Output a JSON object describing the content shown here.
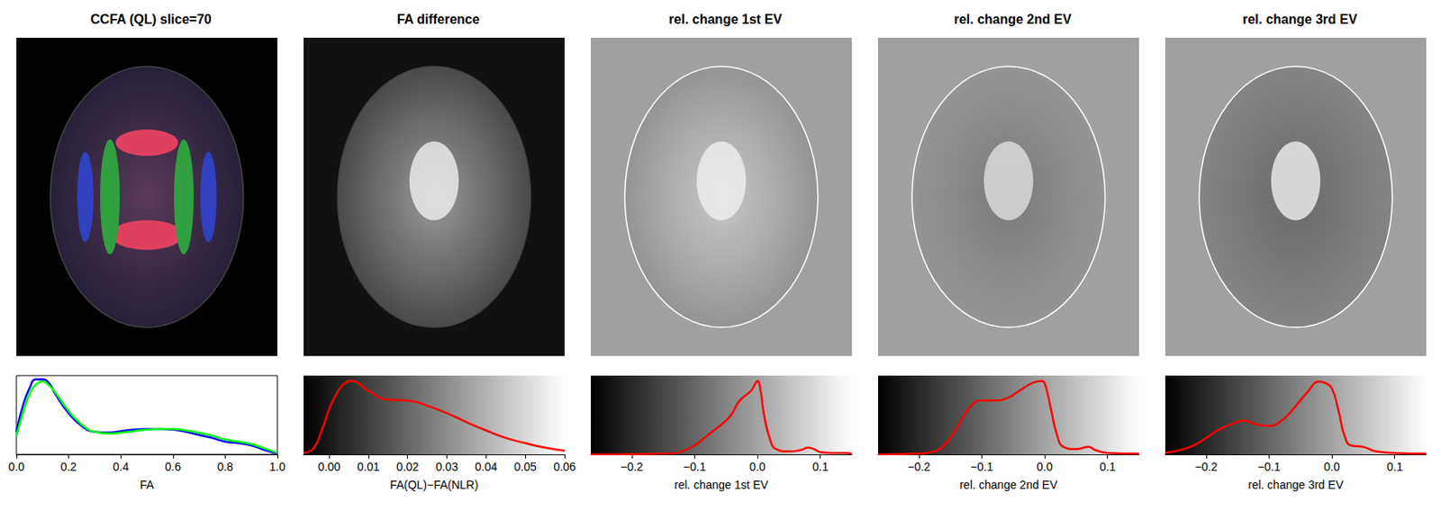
{
  "chart_data": [
    {
      "type": "line",
      "title": "CCFA (QL) slice=70",
      "x_label": "FA",
      "x": [
        0,
        0.025,
        0.05,
        0.075,
        0.1,
        0.125,
        0.15,
        0.2,
        0.25,
        0.3,
        0.35,
        0.4,
        0.45,
        0.5,
        0.55,
        0.6,
        0.65,
        0.7,
        0.75,
        0.8,
        0.85,
        0.9,
        0.95,
        1.0
      ],
      "series": [
        {
          "color": "#0000ff",
          "values": [
            0.3,
            0.65,
            0.88,
            1.0,
            1.0,
            0.95,
            0.8,
            0.55,
            0.38,
            0.3,
            0.29,
            0.31,
            0.33,
            0.34,
            0.34,
            0.33,
            0.3,
            0.26,
            0.22,
            0.17,
            0.15,
            0.12,
            0.06,
            0.01
          ]
        },
        {
          "color": "#00ff00",
          "values": [
            0.25,
            0.55,
            0.8,
            0.93,
            0.97,
            0.92,
            0.82,
            0.58,
            0.4,
            0.3,
            0.28,
            0.29,
            0.31,
            0.33,
            0.34,
            0.34,
            0.32,
            0.29,
            0.25,
            0.2,
            0.17,
            0.14,
            0.08,
            0.02
          ]
        }
      ],
      "xlim": [
        0,
        1.0
      ],
      "ylim": [
        0,
        1.05
      ],
      "xticks": [
        {
          "value": 0,
          "label": "0.0"
        },
        0.2,
        0.4,
        0.6,
        0.8,
        {
          "value": 1.0,
          "label": "1.0"
        }
      ],
      "tick_labels": "x"
    },
    {
      "type": "line",
      "title": "FA difference",
      "x_label": "FA(QL)−FA(NLR)",
      "x": [
        -0.0065,
        -0.004,
        -0.002,
        0,
        0.002,
        0.004,
        0.006,
        0.008,
        0.01,
        0.015,
        0.02,
        0.025,
        0.03,
        0.035,
        0.04,
        0.045,
        0.05,
        0.055,
        0.06
      ],
      "series": [
        {
          "color": "#ff0000",
          "values": [
            0.02,
            0.08,
            0.3,
            0.6,
            0.82,
            0.95,
            0.98,
            0.93,
            0.85,
            0.73,
            0.72,
            0.65,
            0.55,
            0.43,
            0.32,
            0.22,
            0.15,
            0.09,
            0.05
          ]
        }
      ],
      "xlim": [
        -0.0065,
        0.06
      ],
      "ylim": [
        0,
        1.05
      ],
      "xticks": [
        {
          "value": 0,
          "label": "0.00"
        },
        0.01,
        0.02,
        0.03,
        0.04,
        0.05,
        0.06
      ],
      "tick_labels": "x"
    },
    {
      "type": "line",
      "title": "rel. change 1st EV",
      "x_label": "rel. change 1st EV",
      "x": [
        -0.265,
        -0.14,
        -0.12,
        -0.1,
        -0.08,
        -0.06,
        -0.05,
        -0.04,
        -0.03,
        -0.02,
        -0.01,
        -0.005,
        0,
        0.005,
        0.01,
        0.02,
        0.03,
        0.05,
        0.07,
        0.08,
        0.09,
        0.1,
        0.12,
        0.14,
        0.15
      ],
      "series": [
        {
          "color": "#ff0000",
          "values": [
            0,
            0.01,
            0.04,
            0.12,
            0.25,
            0.38,
            0.45,
            0.55,
            0.7,
            0.78,
            0.85,
            0.92,
            0.98,
            0.85,
            0.55,
            0.2,
            0.07,
            0.04,
            0.06,
            0.09,
            0.07,
            0.03,
            0.02,
            0.02,
            0.01
          ]
        }
      ],
      "xlim": [
        -0.265,
        0.15
      ],
      "ylim": [
        0,
        1.05
      ],
      "xticks": [
        {
          "value": -0.2,
          "label": "−0.2"
        },
        {
          "value": -0.1,
          "label": "−0.1"
        },
        {
          "value": 0,
          "label": "0.0"
        },
        0.1
      ],
      "tick_labels": "x"
    },
    {
      "type": "line",
      "title": "rel. change 2nd EV",
      "x_label": "rel. change 2nd EV",
      "x": [
        -0.265,
        -0.2,
        -0.18,
        -0.16,
        -0.14,
        -0.12,
        -0.1,
        -0.08,
        -0.06,
        -0.04,
        -0.02,
        -0.005,
        0,
        0.01,
        0.02,
        0.03,
        0.05,
        0.07,
        0.08,
        0.1,
        0.15
      ],
      "series": [
        {
          "color": "#ff0000",
          "values": [
            0,
            0.01,
            0.03,
            0.12,
            0.35,
            0.62,
            0.72,
            0.72,
            0.75,
            0.85,
            0.95,
            0.98,
            0.95,
            0.6,
            0.25,
            0.1,
            0.07,
            0.1,
            0.06,
            0.02,
            0.01
          ]
        }
      ],
      "xlim": [
        -0.265,
        0.15
      ],
      "ylim": [
        0,
        1.05
      ],
      "xticks": [
        {
          "value": -0.2,
          "label": "−0.2"
        },
        {
          "value": -0.1,
          "label": "−0.1"
        },
        {
          "value": 0,
          "label": "0.0"
        },
        0.1
      ],
      "tick_labels": "x"
    },
    {
      "type": "line",
      "title": "rel. change 3rd EV",
      "x_label": "rel. change 3rd EV",
      "x": [
        -0.265,
        -0.24,
        -0.22,
        -0.2,
        -0.18,
        -0.16,
        -0.14,
        -0.12,
        -0.1,
        -0.08,
        -0.06,
        -0.04,
        -0.02,
        -0.01,
        0,
        0.01,
        0.02,
        0.03,
        0.05,
        0.07,
        0.1,
        0.15
      ],
      "series": [
        {
          "color": "#ff0000",
          "values": [
            0.02,
            0.06,
            0.12,
            0.22,
            0.33,
            0.4,
            0.45,
            0.4,
            0.38,
            0.45,
            0.62,
            0.82,
            0.97,
            0.95,
            0.88,
            0.6,
            0.25,
            0.12,
            0.1,
            0.04,
            0.02,
            0.01
          ]
        }
      ],
      "xlim": [
        -0.265,
        0.15
      ],
      "ylim": [
        0,
        1.05
      ],
      "xticks": [
        {
          "value": -0.2,
          "label": "−0.2"
        },
        {
          "value": -0.1,
          "label": "−0.1"
        },
        {
          "value": 0,
          "label": "0.0"
        },
        0.1
      ],
      "tick_labels": "x"
    }
  ]
}
